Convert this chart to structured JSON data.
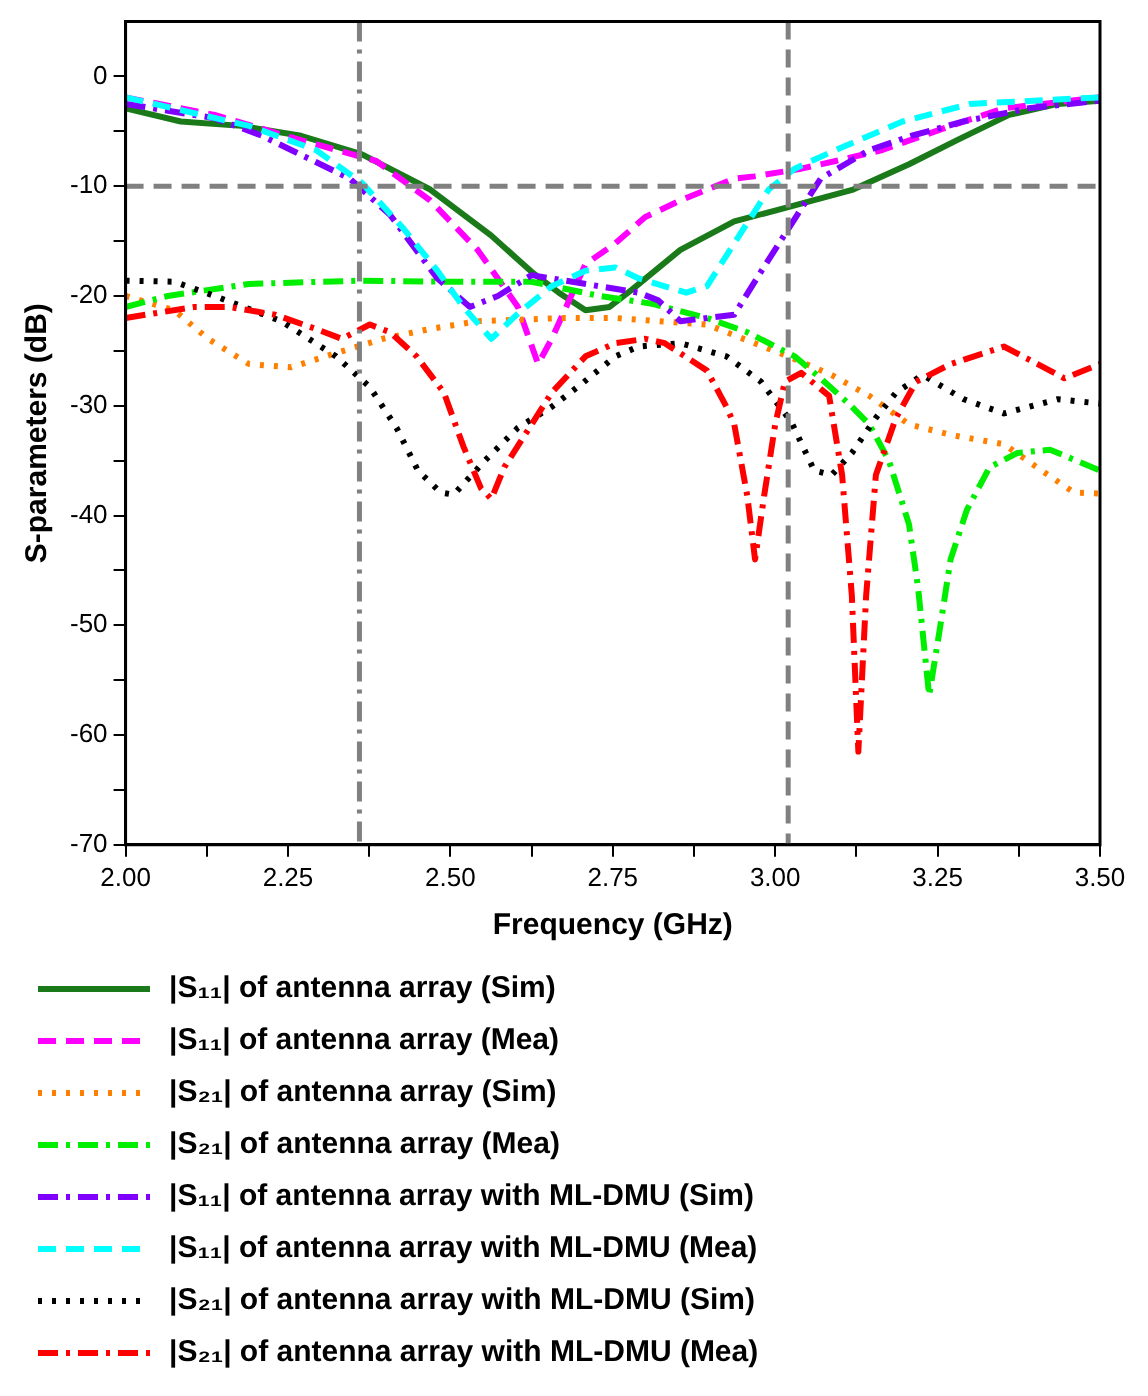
{
  "chart_data": {
    "type": "line",
    "xlabel": "Frequency (GHz)",
    "ylabel": "S-parameters (dB)",
    "xlim": [
      2.0,
      3.5
    ],
    "ylim": [
      -70,
      5
    ],
    "xticks": [
      {
        "value": 2.0,
        "label": "2.00"
      },
      {
        "value": 2.125,
        "label": null
      },
      {
        "value": 2.25,
        "label": "2.25"
      },
      {
        "value": 2.375,
        "label": null
      },
      {
        "value": 2.5,
        "label": "2.50"
      },
      {
        "value": 2.625,
        "label": null
      },
      {
        "value": 2.75,
        "label": "2.75"
      },
      {
        "value": 2.875,
        "label": null
      },
      {
        "value": 3.0,
        "label": "3.00"
      },
      {
        "value": 3.125,
        "label": null
      },
      {
        "value": 3.25,
        "label": "3.25"
      },
      {
        "value": 3.375,
        "label": null
      },
      {
        "value": 3.5,
        "label": "3.50"
      }
    ],
    "yticks": [
      -70,
      {
        "value": -65,
        "label": null
      },
      -60,
      {
        "value": -55,
        "label": null
      },
      -50,
      {
        "value": -45,
        "label": null
      },
      -40,
      {
        "value": -35,
        "label": null
      },
      -30,
      {
        "value": -25,
        "label": null
      },
      -20,
      {
        "value": -15,
        "label": null
      },
      -10,
      {
        "value": -5,
        "label": null
      },
      0
    ],
    "legend": "bottom",
    "grid": false,
    "marker": "none",
    "ref_lines": [
      {
        "axis": "x",
        "value": 2.36,
        "color": "#808080",
        "line_style": "dashdot"
      },
      {
        "axis": "x",
        "value": 3.02,
        "color": "#808080",
        "line_style": "dashed"
      },
      {
        "axis": "y",
        "value": -10,
        "color": "#808080",
        "line_style": "dashed"
      }
    ],
    "series": [
      {
        "name": "|S₁₁| of antenna array (Sim)",
        "color": "#1a7a1a",
        "line_style": "solid",
        "x": [
          2.0,
          2.085,
          2.178,
          2.27,
          2.364,
          2.469,
          2.563,
          2.625,
          2.667,
          2.708,
          2.745,
          2.78,
          2.854,
          2.937,
          3.02,
          3.12,
          3.206,
          3.28,
          3.36,
          3.435,
          3.5
        ],
        "values": [
          -2.9,
          -4.1,
          -4.5,
          -5.4,
          -7.1,
          -10.3,
          -14.5,
          -17.8,
          -19.7,
          -21.3,
          -21.0,
          -19.4,
          -15.8,
          -13.2,
          -11.9,
          -10.3,
          -8.0,
          -5.8,
          -3.5,
          -2.5,
          -2.2
        ]
      },
      {
        "name": "|S₁₁| of antenna array (Mea)",
        "color": "#ff00ff",
        "line_style": "dashed",
        "x": [
          2.0,
          2.137,
          2.27,
          2.386,
          2.469,
          2.542,
          2.604,
          2.635,
          2.656,
          2.708,
          2.754,
          2.8,
          2.854,
          2.937,
          2.968,
          3.04,
          3.093,
          3.165,
          3.27,
          3.352,
          3.5
        ],
        "values": [
          -1.9,
          -3.5,
          -5.8,
          -7.7,
          -11.3,
          -15.8,
          -21.0,
          -26.2,
          -23.9,
          -17.1,
          -15.2,
          -12.8,
          -11.3,
          -9.3,
          -9.1,
          -8.4,
          -7.7,
          -6.7,
          -4.5,
          -2.9,
          -1.9
        ]
      },
      {
        "name": "|S₂₁| of antenna array (Sim)",
        "color": "#ff8000",
        "line_style": "dotted",
        "x": [
          2.0,
          2.075,
          2.127,
          2.19,
          2.255,
          2.324,
          2.396,
          2.469,
          2.542,
          2.677,
          2.754,
          2.822,
          2.895,
          3.02,
          3.087,
          3.145,
          3.206,
          3.274,
          3.352,
          3.41,
          3.46,
          3.5
        ],
        "values": [
          -20.0,
          -21.3,
          -23.9,
          -26.2,
          -26.5,
          -25.2,
          -23.9,
          -23.0,
          -22.3,
          -22.0,
          -22.0,
          -22.3,
          -22.6,
          -25.5,
          -27.2,
          -29.1,
          -31.7,
          -32.7,
          -33.5,
          -35.9,
          -37.9,
          -38.0
        ]
      },
      {
        "name": "|S₂₁| of antenna array (Mea)",
        "color": "#00ee00",
        "line_style": "dashdot",
        "x": [
          2.0,
          2.065,
          2.19,
          2.364,
          2.5,
          2.625,
          2.73,
          2.81,
          2.895,
          2.957,
          3.03,
          3.07,
          3.113,
          3.145,
          3.175,
          3.206,
          3.22,
          3.237,
          3.253,
          3.27,
          3.295,
          3.33,
          3.373,
          3.423,
          3.5
        ],
        "values": [
          -21.0,
          -20.0,
          -18.9,
          -18.6,
          -18.7,
          -18.7,
          -20.0,
          -20.7,
          -22.0,
          -23.3,
          -25.5,
          -27.5,
          -29.8,
          -31.7,
          -35.0,
          -40.8,
          -46.6,
          -56.4,
          -50.5,
          -44.0,
          -39.5,
          -35.6,
          -34.3,
          -34.0,
          -35.9
        ]
      },
      {
        "name": "|S₁₁| of antenna array with ML-DMU (Sim)",
        "color": "#8000ff",
        "line_style": "dashdot",
        "x": [
          2.0,
          2.137,
          2.21,
          2.3,
          2.345,
          2.407,
          2.48,
          2.53,
          2.573,
          2.625,
          2.656,
          2.79,
          2.82,
          2.854,
          2.937,
          2.978,
          3.02,
          3.07,
          3.145,
          3.21,
          3.29,
          3.39,
          3.5
        ],
        "values": [
          -2.5,
          -3.8,
          -5.4,
          -8.0,
          -9.3,
          -12.6,
          -18.4,
          -21.0,
          -20.0,
          -18.1,
          -18.4,
          -19.7,
          -20.4,
          -22.3,
          -21.7,
          -17.8,
          -13.9,
          -9.3,
          -6.7,
          -5.4,
          -4.1,
          -2.9,
          -2.2
        ]
      },
      {
        "name": "|S₁₁| of antenna array with ML-DMU (Mea)",
        "color": "#00ffff",
        "line_style": "dashed",
        "x": [
          2.0,
          2.19,
          2.293,
          2.364,
          2.427,
          2.48,
          2.52,
          2.563,
          2.604,
          2.656,
          2.708,
          2.754,
          2.79,
          2.863,
          2.895,
          2.937,
          2.99,
          3.03,
          3.093,
          3.196,
          3.3,
          3.5
        ],
        "values": [
          -1.9,
          -4.5,
          -6.7,
          -9.7,
          -13.8,
          -17.7,
          -21.0,
          -23.9,
          -21.6,
          -19.1,
          -17.7,
          -17.4,
          -18.4,
          -19.7,
          -19.1,
          -15.2,
          -10.3,
          -8.4,
          -6.7,
          -4.1,
          -2.5,
          -1.9
        ]
      },
      {
        "name": "|S₂₁| of antenna array with ML-DMU (Sim)",
        "color": "#000000",
        "line_style": "dotted",
        "x": [
          2.0,
          2.075,
          2.137,
          2.24,
          2.324,
          2.376,
          2.417,
          2.45,
          2.485,
          2.505,
          2.553,
          2.604,
          2.656,
          2.698,
          2.754,
          2.79,
          2.854,
          2.925,
          2.978,
          3.025,
          3.06,
          3.087,
          3.118,
          3.155,
          3.186,
          3.227,
          3.29,
          3.352,
          3.435,
          3.5
        ],
        "values": [
          -18.6,
          -18.7,
          -20.0,
          -22.3,
          -25.5,
          -28.3,
          -32.0,
          -35.9,
          -37.9,
          -38.1,
          -35.0,
          -32.0,
          -30.1,
          -28.2,
          -25.5,
          -24.6,
          -24.3,
          -25.5,
          -27.8,
          -31.5,
          -35.9,
          -36.3,
          -34.3,
          -31.1,
          -28.8,
          -27.2,
          -29.4,
          -30.7,
          -29.4,
          -29.8
        ]
      },
      {
        "name": "|S₂₁| of antenna array with ML-DMU (Mea)",
        "color": "#ff0000",
        "line_style": "dashdot",
        "x": [
          2.0,
          2.106,
          2.16,
          2.23,
          2.293,
          2.333,
          2.376,
          2.407,
          2.448,
          2.49,
          2.52,
          2.547,
          2.563,
          2.583,
          2.625,
          2.656,
          2.708,
          2.754,
          2.8,
          2.83,
          2.895,
          2.925,
          2.937,
          2.957,
          2.969,
          2.983,
          3.0,
          3.015,
          3.04,
          3.083,
          3.103,
          3.118,
          3.128,
          3.14,
          3.155,
          3.186,
          3.217,
          3.27,
          3.352,
          3.404,
          3.445,
          3.5
        ],
        "values": [
          -22.0,
          -21.0,
          -21.0,
          -21.7,
          -23.0,
          -23.9,
          -22.6,
          -23.3,
          -25.5,
          -28.8,
          -33.7,
          -37.5,
          -38.5,
          -35.6,
          -31.7,
          -28.8,
          -25.5,
          -24.3,
          -23.9,
          -24.3,
          -26.8,
          -30.1,
          -31.7,
          -38.2,
          -44.0,
          -38.2,
          -31.7,
          -27.8,
          -27.0,
          -29.1,
          -36.3,
          -47.3,
          -61.5,
          -47.3,
          -36.3,
          -31.1,
          -27.8,
          -26.2,
          -24.6,
          -26.2,
          -27.5,
          -26.2
        ]
      }
    ]
  }
}
